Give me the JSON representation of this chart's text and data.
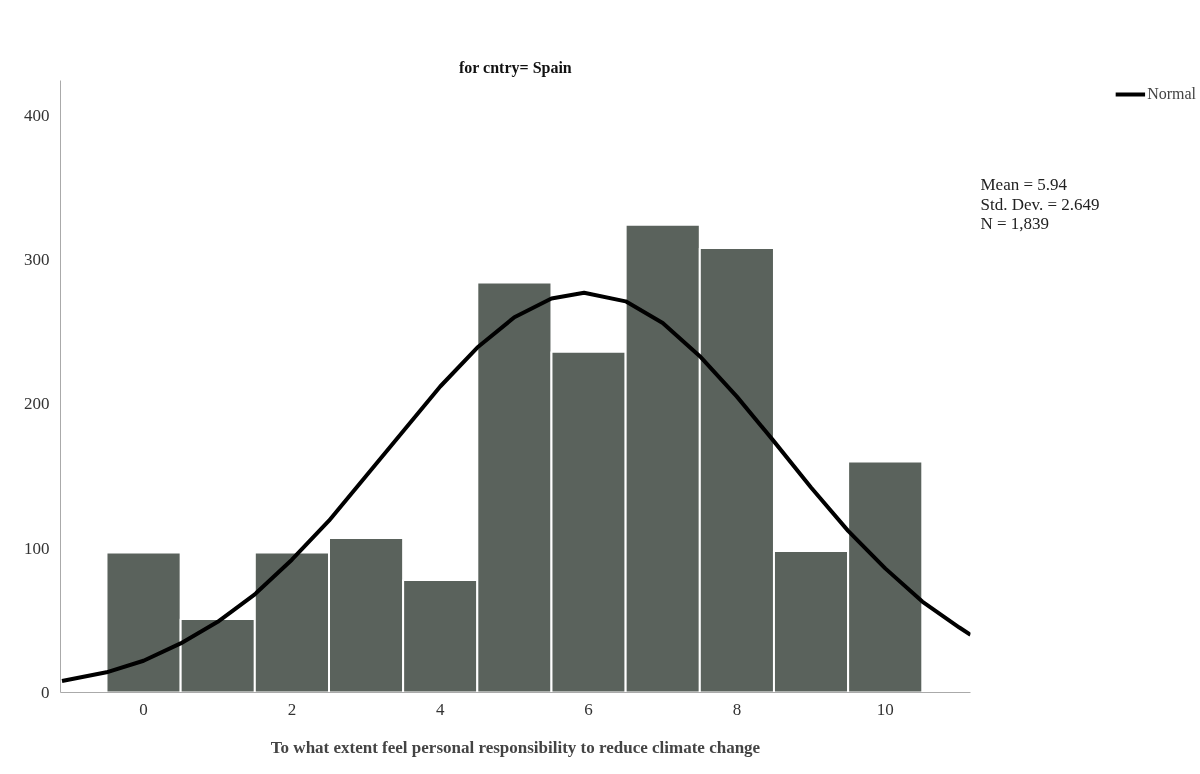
{
  "chart_data": {
    "type": "histogram",
    "title": "for cntry= Spain",
    "xlabel": "To what extent feel personal responsibility to reduce climate change",
    "bins": [
      -0.5,
      0.5,
      1.5,
      2.5,
      3.5,
      4.5,
      5.5,
      6.5,
      7.5,
      8.5,
      9.5,
      10.5
    ],
    "values": [
      97,
      51,
      97,
      107,
      78,
      284,
      236,
      324,
      308,
      98,
      160
    ],
    "color": "#5a625c",
    "series": [
      {
        "type": "line",
        "name": "Normal",
        "color": "#000000",
        "x": [
          -1.1,
          -0.5,
          0,
          0.5,
          1,
          1.5,
          2,
          2.5,
          3,
          3.5,
          4,
          4.5,
          5,
          5.5,
          5.94,
          6.5,
          7,
          7.5,
          8,
          8.5,
          9,
          9.5,
          10,
          10.5,
          11,
          11.15
        ],
        "values": [
          8,
          14,
          22,
          34,
          49,
          68,
          92,
          119,
          150,
          181,
          212,
          239,
          260,
          273,
          277,
          271,
          256,
          233,
          205,
          174,
          142,
          112,
          86,
          63,
          45,
          40
        ]
      }
    ],
    "annotations": [
      "Mean = 5.94",
      "Std. Dev. = 2.649",
      "N = 1,839"
    ],
    "xlim": [
      -1.12,
      11.15
    ],
    "ylim": [
      0,
      424
    ],
    "xticks": [
      0,
      2,
      4,
      6,
      8,
      10
    ],
    "yticks": [
      0,
      100,
      200,
      300,
      400
    ],
    "grid": false,
    "legend": "top right"
  }
}
